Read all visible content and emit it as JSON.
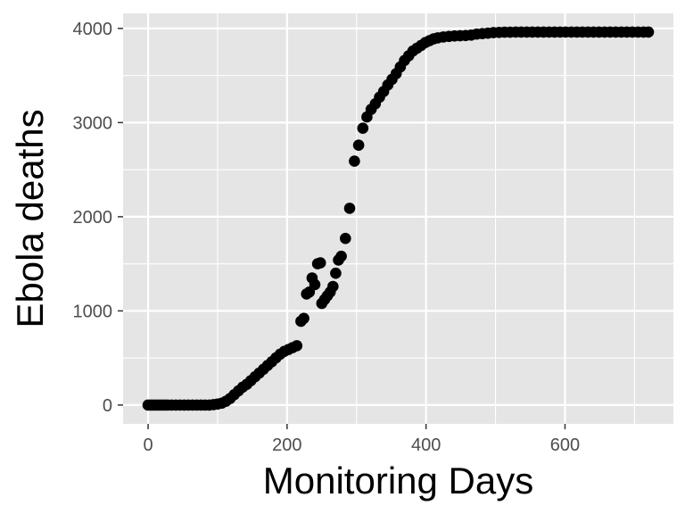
{
  "chart_data": {
    "type": "scatter",
    "title": "",
    "xlabel": "Monitoring Days",
    "ylabel": "Ebola deaths",
    "xlim": [
      -36,
      756
    ],
    "ylim": [
      -200,
      4160
    ],
    "x_ticks": [
      0,
      200,
      400,
      600
    ],
    "y_ticks": [
      0,
      1000,
      2000,
      3000,
      4000
    ],
    "grid": true,
    "panel_color": "#e5e5e5",
    "grid_color": "#ffffff",
    "point_color": "#000000",
    "series": [
      {
        "points": [
          [
            0,
            0
          ],
          [
            4,
            0
          ],
          [
            8,
            0
          ],
          [
            12,
            0
          ],
          [
            16,
            0
          ],
          [
            20,
            0
          ],
          [
            24,
            0
          ],
          [
            28,
            0
          ],
          [
            34,
            0
          ],
          [
            40,
            0
          ],
          [
            46,
            0
          ],
          [
            52,
            0
          ],
          [
            58,
            0
          ],
          [
            64,
            0
          ],
          [
            70,
            0
          ],
          [
            76,
            0
          ],
          [
            82,
            0
          ],
          [
            88,
            0
          ],
          [
            94,
            5
          ],
          [
            100,
            10
          ],
          [
            106,
            20
          ],
          [
            112,
            40
          ],
          [
            118,
            70
          ],
          [
            124,
            110
          ],
          [
            130,
            150
          ],
          [
            136,
            190
          ],
          [
            142,
            220
          ],
          [
            148,
            260
          ],
          [
            154,
            300
          ],
          [
            160,
            340
          ],
          [
            166,
            380
          ],
          [
            172,
            420
          ],
          [
            178,
            460
          ],
          [
            184,
            500
          ],
          [
            190,
            540
          ],
          [
            196,
            570
          ],
          [
            202,
            590
          ],
          [
            208,
            610
          ],
          [
            214,
            630
          ],
          [
            220,
            890
          ],
          [
            224,
            920
          ],
          [
            228,
            1180
          ],
          [
            232,
            1200
          ],
          [
            236,
            1350
          ],
          [
            240,
            1280
          ],
          [
            244,
            1500
          ],
          [
            248,
            1510
          ],
          [
            250,
            1080
          ],
          [
            254,
            1120
          ],
          [
            258,
            1160
          ],
          [
            262,
            1200
          ],
          [
            266,
            1260
          ],
          [
            270,
            1400
          ],
          [
            274,
            1540
          ],
          [
            278,
            1580
          ],
          [
            284,
            1770
          ],
          [
            290,
            2090
          ],
          [
            297,
            2590
          ],
          [
            303,
            2760
          ],
          [
            309,
            2940
          ],
          [
            315,
            3060
          ],
          [
            321,
            3140
          ],
          [
            327,
            3200
          ],
          [
            333,
            3270
          ],
          [
            339,
            3330
          ],
          [
            345,
            3400
          ],
          [
            351,
            3460
          ],
          [
            357,
            3520
          ],
          [
            363,
            3590
          ],
          [
            369,
            3660
          ],
          [
            375,
            3710
          ],
          [
            381,
            3760
          ],
          [
            387,
            3790
          ],
          [
            393,
            3820
          ],
          [
            399,
            3850
          ],
          [
            405,
            3870
          ],
          [
            411,
            3890
          ],
          [
            417,
            3900
          ],
          [
            425,
            3910
          ],
          [
            433,
            3915
          ],
          [
            441,
            3920
          ],
          [
            449,
            3922
          ],
          [
            457,
            3925
          ],
          [
            465,
            3930
          ],
          [
            473,
            3940
          ],
          [
            481,
            3945
          ],
          [
            489,
            3950
          ],
          [
            497,
            3955
          ],
          [
            505,
            3958
          ],
          [
            513,
            3960
          ],
          [
            521,
            3960
          ],
          [
            529,
            3962
          ],
          [
            537,
            3962
          ],
          [
            545,
            3962
          ],
          [
            553,
            3962
          ],
          [
            561,
            3962
          ],
          [
            569,
            3962
          ],
          [
            577,
            3962
          ],
          [
            585,
            3962
          ],
          [
            593,
            3962
          ],
          [
            601,
            3962
          ],
          [
            609,
            3962
          ],
          [
            617,
            3962
          ],
          [
            625,
            3962
          ],
          [
            633,
            3962
          ],
          [
            641,
            3962
          ],
          [
            649,
            3962
          ],
          [
            657,
            3962
          ],
          [
            665,
            3962
          ],
          [
            673,
            3962
          ],
          [
            681,
            3962
          ],
          [
            689,
            3962
          ],
          [
            697,
            3962
          ],
          [
            705,
            3962
          ],
          [
            713,
            3962
          ],
          [
            720,
            3962
          ]
        ]
      }
    ]
  }
}
